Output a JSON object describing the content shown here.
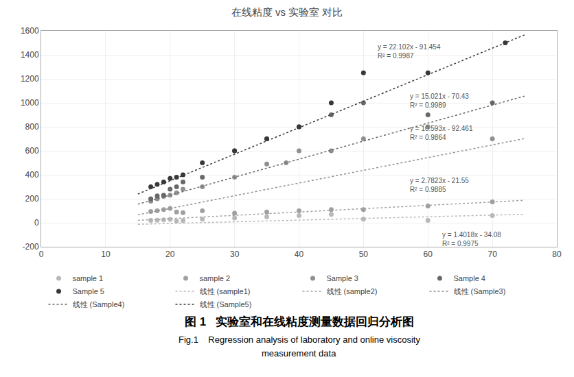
{
  "chart_data": {
    "type": "scatter",
    "title": "在线粘度 vs 实验室 对比",
    "xlim": [
      0,
      80
    ],
    "ylim": [
      -200,
      1600
    ],
    "xticks": [
      0,
      10,
      20,
      30,
      40,
      50,
      60,
      70,
      80
    ],
    "yticks": [
      -200,
      0,
      200,
      400,
      600,
      800,
      1000,
      1200,
      1400,
      1600
    ],
    "grid": true,
    "legend": "bottom",
    "series": [
      {
        "name": "sample 1",
        "type": "scatter",
        "marker": "circle",
        "color": "#b8b8b8",
        "x": [
          17,
          18,
          19,
          20,
          21,
          22,
          25,
          30,
          35,
          40,
          45,
          50,
          60,
          70
        ],
        "values": [
          20,
          22,
          25,
          28,
          15,
          18,
          30,
          40,
          50,
          60,
          70,
          30,
          20,
          60
        ]
      },
      {
        "name": "sample 2",
        "type": "scatter",
        "marker": "circle",
        "color": "#a0a0a0",
        "x": [
          17,
          18,
          19,
          20,
          21,
          22,
          25,
          30,
          35,
          40,
          45,
          50,
          60,
          70
        ],
        "values": [
          95,
          100,
          110,
          120,
          90,
          85,
          100,
          80,
          90,
          100,
          110,
          110,
          140,
          175
        ]
      },
      {
        "name": "Sample 3",
        "type": "scatter",
        "marker": "circle",
        "color": "#909090",
        "x": [
          17,
          18,
          19,
          20,
          21,
          22,
          25,
          30,
          35,
          38,
          40,
          45,
          50,
          60,
          70
        ],
        "values": [
          180,
          200,
          220,
          230,
          250,
          280,
          300,
          380,
          490,
          500,
          600,
          600,
          700,
          800,
          700
        ]
      },
      {
        "name": "Sample 4",
        "type": "scatter",
        "marker": "circle",
        "color": "#686868",
        "x": [
          17,
          18,
          19,
          20,
          21,
          22,
          25,
          30,
          35,
          40,
          45,
          50,
          60,
          70
        ],
        "values": [
          200,
          225,
          230,
          280,
          300,
          340,
          380,
          600,
          700,
          800,
          900,
          1000,
          900,
          1000
        ]
      },
      {
        "name": "Sample 5",
        "type": "scatter",
        "marker": "circle",
        "color": "#383838",
        "x": [
          17,
          18,
          19,
          20,
          21,
          22,
          25,
          30,
          35,
          40,
          45,
          50,
          60,
          72
        ],
        "values": [
          300,
          320,
          340,
          370,
          380,
          400,
          500,
          600,
          700,
          800,
          1000,
          1250,
          1250,
          1500
        ]
      },
      {
        "name": "线性 (sample1)",
        "type": "line",
        "line_style": "dotted",
        "color": "#b8b8b8",
        "x": [
          15,
          75
        ],
        "values": [
          -13.053,
          71.055
        ]
      },
      {
        "name": "线性 (sample2)",
        "type": "line",
        "line_style": "dotted",
        "color": "#a0a0a0",
        "x": [
          15,
          75
        ],
        "values": [
          20.1845,
          187.1225
        ]
      },
      {
        "name": "线性 (Sample3)",
        "type": "line",
        "line_style": "dotted",
        "color": "#909090",
        "x": [
          15,
          75
        ],
        "values": [
          66.434,
          702.014
        ]
      },
      {
        "name": "线性 (Sample4)",
        "type": "line",
        "line_style": "dotted",
        "color": "#686868",
        "x": [
          15,
          75
        ],
        "values": [
          154.885,
          1056.145
        ]
      },
      {
        "name": "线性 (Sample5)",
        "type": "line",
        "line_style": "dotted",
        "color": "#383838",
        "x": [
          15,
          75
        ],
        "values": [
          240.076,
          1566.196
        ]
      }
    ],
    "annotations": [
      {
        "text": [
          "y = 1.4018x - 34.08",
          "R² = 0.9975"
        ],
        "x": 62,
        "y": -135
      },
      {
        "text": [
          "y = 2.7823x - 21.55",
          "R² = 0.9885"
        ],
        "x": 57,
        "y": 315
      },
      {
        "text": [
          "y = 10.593x - 92.461",
          "R² = 0.9864"
        ],
        "x": 57,
        "y": 750
      },
      {
        "text": [
          "y = 15.021x - 70.43",
          "R² = 0.9989"
        ],
        "x": 57,
        "y": 1020
      },
      {
        "text": [
          "y = 22.102x - 91.454",
          "R² = 0.9987"
        ],
        "x": 52,
        "y": 1430
      }
    ],
    "caption": [
      "图 1   实验室和在线粘度测量数据回归分析图",
      "Fig.1    Regression analysis of laboratory and online viscosity",
      "measurement data"
    ]
  }
}
